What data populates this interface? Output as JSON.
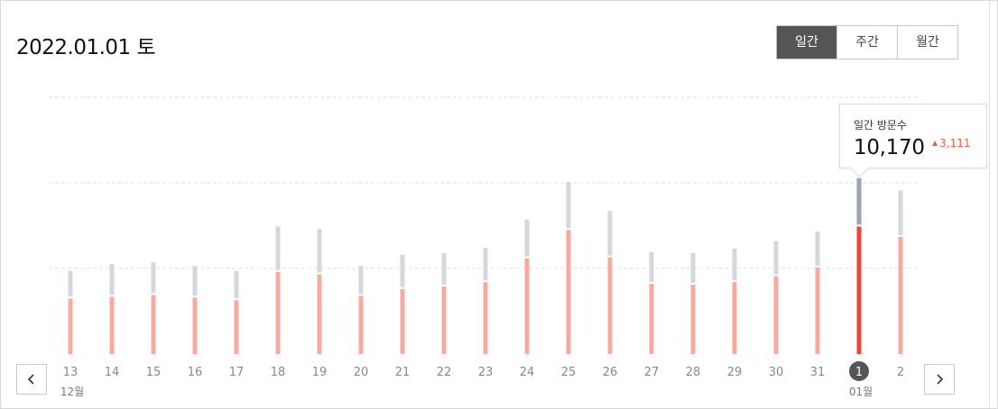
{
  "header": {
    "date_title": "2022.01.01 토",
    "period_tabs": [
      {
        "label": "일간",
        "active": true
      },
      {
        "label": "주간",
        "active": false
      },
      {
        "label": "월간",
        "active": false
      }
    ]
  },
  "navigation": {
    "prev_icon": "chevron-left-icon",
    "next_icon": "chevron-right-icon"
  },
  "tooltip": {
    "label": "일간 방문수",
    "value": "10,170",
    "change": "3,111",
    "change_icon": "triangle-up-icon"
  },
  "colors": {
    "bar_top": "#d4d7db",
    "bar_main": "#f9aaa0",
    "selected_top": "#9aa3b1",
    "selected_main": "#f1453b",
    "change_up": "#f05a4a",
    "grid": "#e2e2e2"
  },
  "chart_data": {
    "type": "bar",
    "stacked": true,
    "categories": [
      "13",
      "14",
      "15",
      "16",
      "17",
      "18",
      "19",
      "20",
      "21",
      "22",
      "23",
      "24",
      "25",
      "26",
      "27",
      "28",
      "29",
      "30",
      "31",
      "1",
      "2"
    ],
    "month_labels": [
      {
        "index": 0,
        "label": "12월"
      },
      {
        "index": 19,
        "label": "01월"
      }
    ],
    "selected_index": 19,
    "ylim": [
      0,
      12000
    ],
    "grid": true,
    "gridlines": [
      5000,
      10000,
      15000
    ],
    "series": [
      {
        "values": [
          3250,
          3350,
          3450,
          3300,
          3150,
          4800,
          4650,
          3400,
          3800,
          3950,
          4200,
          5600,
          7250,
          5650,
          4100,
          4050,
          4200,
          4550,
          5050,
          7450,
          6850
        ]
      },
      {
        "values": [
          1500,
          1800,
          1800,
          1750,
          1600,
          2550,
          2550,
          1650,
          1900,
          1850,
          1900,
          2150,
          2700,
          2600,
          1750,
          1750,
          1850,
          1950,
          2000,
          2720,
          2600
        ]
      }
    ]
  }
}
